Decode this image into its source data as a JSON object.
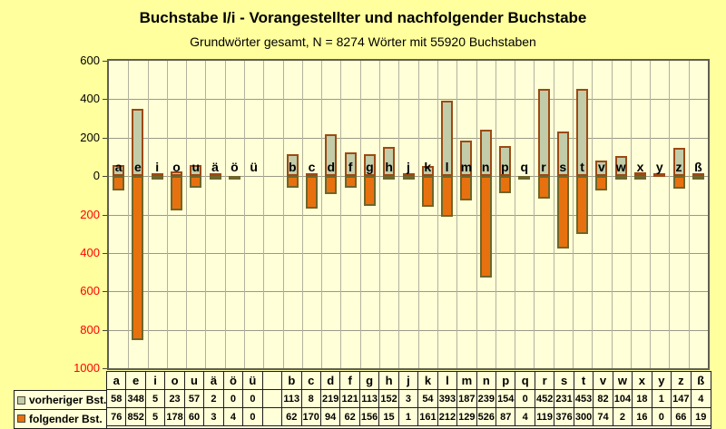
{
  "title": "Buchstabe I/i - Vorangestellter und nachfolgender Buchstabe",
  "subtitle": "Grundwörter gesamt, N = 8274 Wörter mit 55920 Buchstaben",
  "chart_data": {
    "type": "bar",
    "orientation": "diverging-vertical",
    "categories": [
      "a",
      "e",
      "i",
      "o",
      "u",
      "ä",
      "ö",
      "ü",
      "",
      "b",
      "c",
      "d",
      "f",
      "g",
      "h",
      "j",
      "k",
      "l",
      "m",
      "n",
      "p",
      "q",
      "r",
      "s",
      "t",
      "v",
      "w",
      "x",
      "y",
      "z",
      "ß"
    ],
    "series": [
      {
        "name": "vorheriger Bst.",
        "fill": "#c2cca9",
        "border": "#9c4a14",
        "direction": "up",
        "values": [
          58,
          348,
          5,
          23,
          57,
          2,
          0,
          0,
          null,
          113,
          8,
          219,
          121,
          113,
          152,
          3,
          54,
          393,
          187,
          239,
          154,
          0,
          452,
          231,
          453,
          82,
          104,
          18,
          1,
          147,
          4
        ]
      },
      {
        "name": "folgender Bst.",
        "fill": "#e8710f",
        "border": "#6e662a",
        "direction": "down",
        "values": [
          76,
          852,
          5,
          178,
          60,
          3,
          4,
          0,
          null,
          62,
          170,
          94,
          62,
          156,
          15,
          1,
          161,
          212,
          129,
          526,
          87,
          4,
          119,
          376,
          300,
          74,
          2,
          16,
          0,
          66,
          19
        ]
      }
    ],
    "ylim": [
      -1000,
      600
    ],
    "grid": true,
    "legend_position": "bottom-left-table",
    "yticks": [
      {
        "label": "600",
        "value": 600,
        "color": "#000000"
      },
      {
        "label": "400",
        "value": 400,
        "color": "#000000"
      },
      {
        "label": "200",
        "value": 200,
        "color": "#000000"
      },
      {
        "label": "0",
        "value": 0,
        "color": "#000000"
      },
      {
        "label": "200",
        "value": -200,
        "color": "#ff0000"
      },
      {
        "label": "400",
        "value": -400,
        "color": "#ff0000"
      },
      {
        "label": "600",
        "value": -600,
        "color": "#ff0000"
      },
      {
        "label": "800",
        "value": -800,
        "color": "#ff0000"
      },
      {
        "label": "1000",
        "value": -1000,
        "color": "#ff0000"
      }
    ]
  },
  "colors": {
    "page_background": "#ffff9e",
    "plot_background": "#ffffd8",
    "gridline": "#9a9a88",
    "frame": "#5f5f52",
    "up_bar_fill": "#c2cca9",
    "up_bar_border": "#9c4a14",
    "down_bar_fill": "#e8710f",
    "down_bar_border": "#6e662a",
    "negative_axis_label": "#ff0000"
  }
}
